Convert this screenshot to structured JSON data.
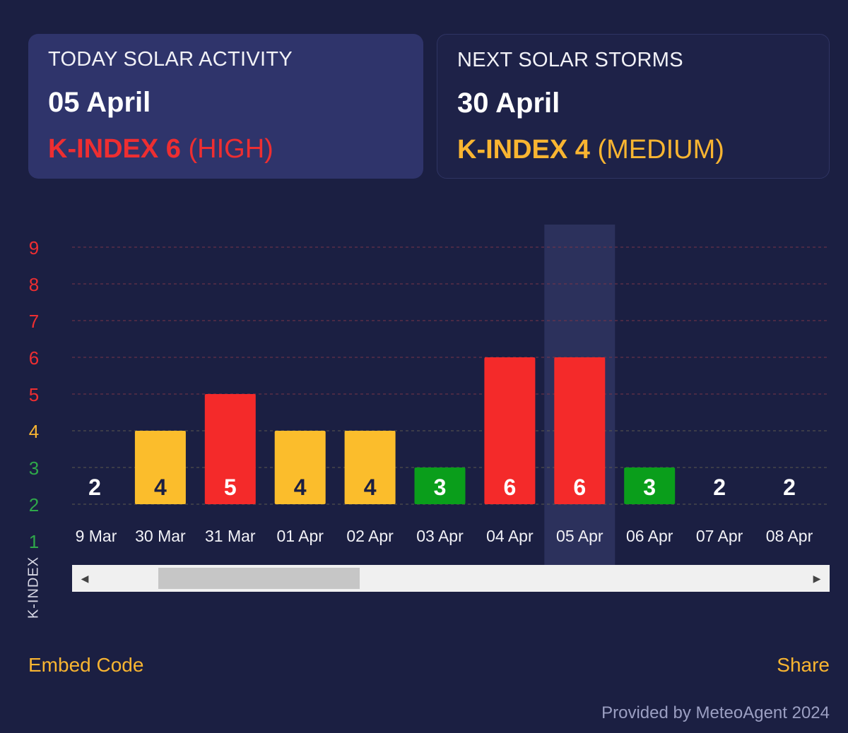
{
  "today": {
    "heading": "TODAY SOLAR ACTIVITY",
    "date": "05 April",
    "kindex_label": "K-INDEX 6",
    "kindex_level": "(HIGH)",
    "color": "#ee2e31"
  },
  "next": {
    "heading": "NEXT SOLAR STORMS",
    "date": "30 April",
    "kindex_label": "K-INDEX 4",
    "kindex_level": "(MEDIUM)",
    "color": "#f9b531"
  },
  "chart_data": {
    "type": "bar",
    "categories": [
      "9 Mar",
      "30 Mar",
      "31 Mar",
      "01 Apr",
      "02 Apr",
      "03 Apr",
      "04 Apr",
      "05 Apr",
      "06 Apr",
      "07 Apr",
      "08 Apr"
    ],
    "values": [
      2,
      4,
      5,
      4,
      4,
      3,
      6,
      6,
      3,
      2,
      2
    ],
    "bar_heights": [
      2.0,
      4.0,
      5.0,
      4.0,
      4.0,
      3.0,
      6.0,
      6.0,
      3.0,
      2.0,
      2.0
    ],
    "highlighted_category": "05 Apr",
    "ylabel": "K-INDEX",
    "yticks": [
      1,
      2,
      3,
      4,
      5,
      6,
      7,
      8,
      9
    ],
    "ylim": [
      1,
      9
    ],
    "grid": true,
    "colors": {
      "low": "#0a9e1b",
      "medium": "#fbbd2c",
      "high": "#f42a2a",
      "tick_low": "#2fa84a",
      "tick_medium": "#f9b531",
      "tick_high": "#ee2e31"
    }
  },
  "scrollbar": {
    "left_arrow": "◀",
    "right_arrow": "▶"
  },
  "footer": {
    "embed_label": "Embed Code",
    "share_label": "Share",
    "provided_by": "Provided by MeteoAgent 2024"
  }
}
